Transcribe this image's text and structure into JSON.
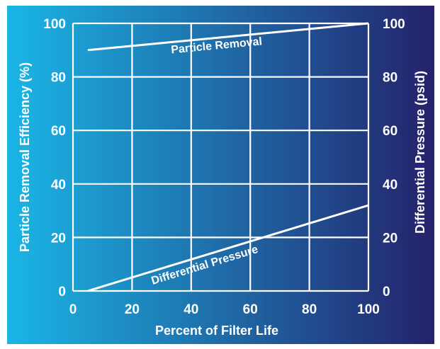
{
  "chart_data": {
    "type": "line",
    "xlabel": "Percent of Filter Life",
    "ylabel_left": "Particle Removal Efficiency (%)",
    "ylabel_right": "Differential Pressure (psid)",
    "xlim": [
      0,
      100
    ],
    "ylim_left": [
      0,
      100
    ],
    "ylim_right": [
      0,
      100
    ],
    "x_ticks": [
      "0",
      "20",
      "40",
      "60",
      "80",
      "100"
    ],
    "y_ticks_left": [
      "0",
      "20",
      "40",
      "60",
      "80",
      "100"
    ],
    "y_ticks_right": [
      "0",
      "20",
      "40",
      "60",
      "80",
      "100"
    ],
    "grid": true,
    "background": {
      "from": "#1ab6e6",
      "to": "#24226b"
    },
    "series": [
      {
        "name": "Particle Removal",
        "axis": "left",
        "x": [
          5,
          100
        ],
        "y": [
          90,
          100
        ],
        "color": "#ffffff"
      },
      {
        "name": "Differential Pressure",
        "axis": "right",
        "x": [
          5,
          100
        ],
        "y": [
          0,
          32
        ],
        "color": "#ffffff"
      }
    ]
  }
}
